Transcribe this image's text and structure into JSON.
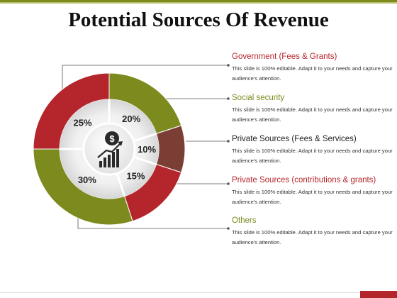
{
  "title": "Potential Sources Of Revenue",
  "chart_data": {
    "type": "pie",
    "categories": [
      "Government (Fees & Grants)",
      "Social security",
      "Private Sources (Fees & Services)",
      "Private Sources (contributions & grants)",
      "Others"
    ],
    "values": [
      25,
      20,
      10,
      15,
      30
    ],
    "labels": [
      "25%",
      "20%",
      "10%",
      "15%",
      "30%"
    ],
    "colors": [
      "#b5262c",
      "#7d8a1e",
      "#7a3e35",
      "#b5262c",
      "#7d8a1e"
    ]
  },
  "items": [
    {
      "title": "Government (Fees & Grants)",
      "desc": "This slide is 100% editable. Adapt it to your needs and capture your audience's attention.",
      "color": "#b5262c"
    },
    {
      "title": "Social security",
      "desc": "This slide is 100% editable. Adapt it to your needs and capture your audience's attention.",
      "color": "#7d8a1e"
    },
    {
      "title": "Private Sources (Fees & Services)",
      "desc": "This slide is 100% editable. Adapt it to your needs and capture your audience's attention.",
      "color": "#222222"
    },
    {
      "title": "Private Sources (contributions & grants)",
      "desc": "This slide is 100% editable. Adapt it to your needs and capture your audience's attention.",
      "color": "#b5262c"
    },
    {
      "title": "Others",
      "desc": "This slide is 100% editable. Adapt it to your needs and capture your audience's attention.",
      "color": "#7d8a1e"
    }
  ],
  "icons": {
    "center": "revenue-growth-icon"
  }
}
